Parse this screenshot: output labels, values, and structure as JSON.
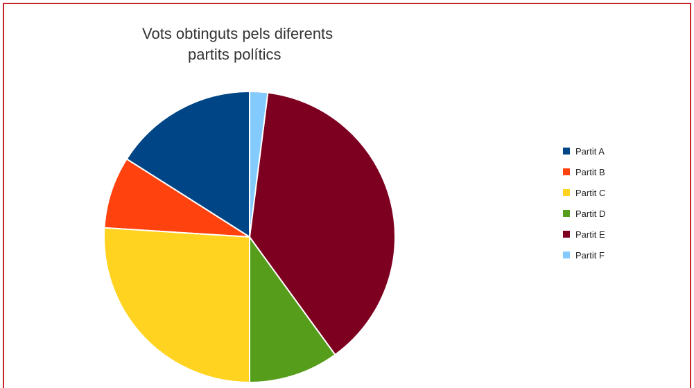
{
  "chart_data": {
    "type": "pie",
    "title": "Vots obtinguts pels diferents partits polítics",
    "title_lines": [
      "Vots obtinguts pels diferents",
      "partits polítics"
    ],
    "legend_position": "right",
    "start_angle_deg": 0,
    "direction": "counterclockwise",
    "slices": [
      {
        "label": "Partit A",
        "value": 16,
        "color": "#004586"
      },
      {
        "label": "Partit B",
        "value": 8,
        "color": "#ff420e"
      },
      {
        "label": "Partit C",
        "value": 26,
        "color": "#ffd320"
      },
      {
        "label": "Partit D",
        "value": 10,
        "color": "#579d1c"
      },
      {
        "label": "Partit E",
        "value": 38,
        "color": "#7e0021"
      },
      {
        "label": "Partit F",
        "value": 2,
        "color": "#83caff"
      }
    ]
  }
}
